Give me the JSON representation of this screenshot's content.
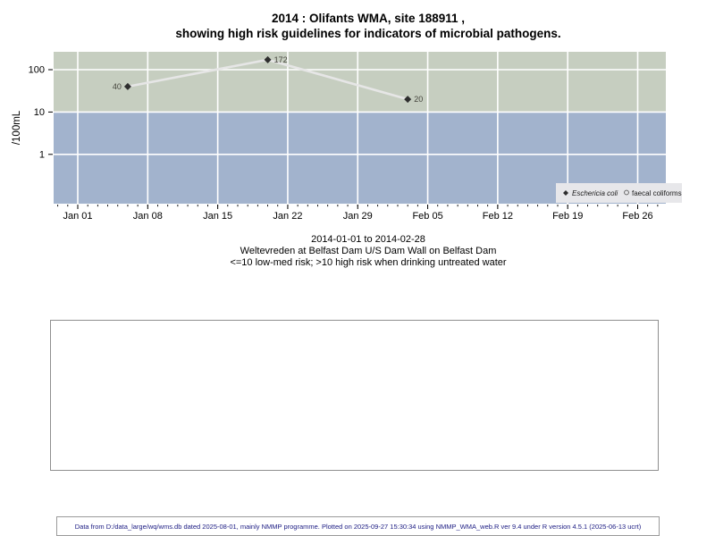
{
  "title": {
    "line1": "2014 : Olifants WMA, site 188911 ,",
    "line2": "showing high risk guidelines for indicators of microbial pathogens."
  },
  "caption": {
    "line1": "2014-01-01 to 2014-02-28",
    "line2": "Weltevreden at Belfast Dam U/S Dam Wall on Belfast Dam",
    "line3": "<=10 low-med risk; >10 high risk when drinking untreated water"
  },
  "footer": {
    "text": "Data from D:/data_large/wq/wms.db dated 2025-08-01, mainly NMMP programme. Plotted on 2025-09-27 15:30:34 using NMMP_WMA_web.R ver 9.4 under R version 4.5.1 (2025-06-13 ucrt)"
  },
  "chart_data": {
    "type": "line",
    "ylabel": "/100mL",
    "y_scale": "log",
    "y_ticks": [
      1,
      10,
      100
    ],
    "y_range": [
      0.068,
      264
    ],
    "x_start_date": "2014-01-01",
    "x_end_date": "2014-02-28",
    "x_tick_labels": [
      "Jan 01",
      "Jan 08",
      "Jan 15",
      "Jan 22",
      "Jan 29",
      "Feb 05",
      "Feb 12",
      "Feb 19",
      "Feb 26"
    ],
    "x_tick_days": [
      0,
      7,
      14,
      21,
      28,
      35,
      42,
      49,
      56
    ],
    "x_minor_tick_interval_days": 1,
    "x_minor_tick_day_range": [
      -2,
      58
    ],
    "grid": true,
    "gridline_color": "#ffffff",
    "risk_bands": [
      {
        "label": "high risk (>10)",
        "from": 10,
        "to": 264,
        "color": "#c6cec0"
      },
      {
        "label": "low-med risk (<=10)",
        "from": 0.068,
        "to": 10,
        "color": "#a2b3cd"
      }
    ],
    "series": [
      {
        "name": "Eschericia coli",
        "marker": "filled-diamond",
        "marker_color": "#2e2e2e",
        "line_color": "#e6e6e6",
        "label_color": "#45453d",
        "points": [
          {
            "date": "2014-01-06",
            "day": 5,
            "value": 40,
            "label": "40",
            "label_side": "left"
          },
          {
            "date": "2014-01-20",
            "day": 19,
            "value": 172,
            "label": "172",
            "label_side": "right"
          },
          {
            "date": "2014-02-03",
            "day": 33,
            "value": 20,
            "label": "20",
            "label_side": "right"
          }
        ]
      },
      {
        "name": "faecal coliforms",
        "marker": "open-circle",
        "marker_color": "#555555",
        "points": []
      }
    ],
    "legend": {
      "position": "bottom-right",
      "background": "#e7e7ea",
      "items": [
        {
          "label": "Eschericia coli",
          "marker": "filled-diamond",
          "italic": true
        },
        {
          "label": "faecal coliforms",
          "marker": "open-circle",
          "italic": false
        }
      ]
    }
  }
}
